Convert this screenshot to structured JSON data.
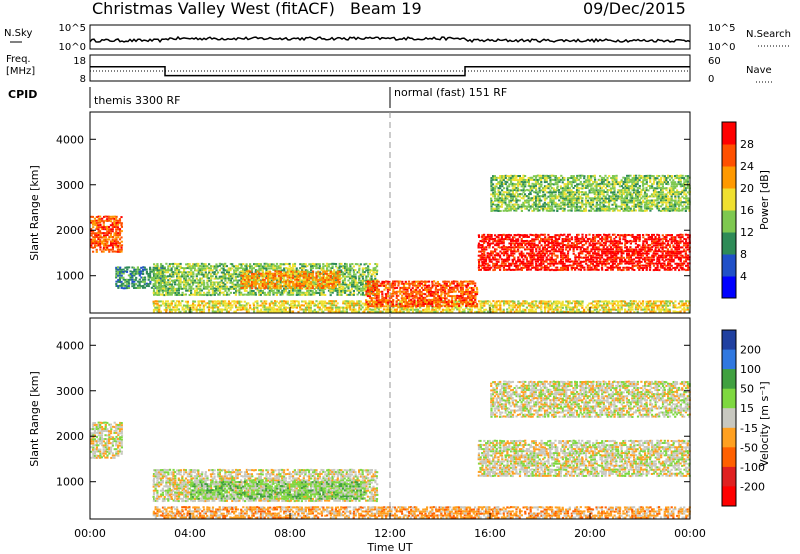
{
  "chart_data": [
    {
      "type": "line",
      "panel": "status",
      "title": "Christmas Valley West (fitACF)",
      "beam_label": "Beam 19",
      "date_label": "09/Dec/2015",
      "rows": {
        "nsky": {
          "left_label": "N.Sky",
          "left_ticks": [
            "10^5",
            "10^0"
          ],
          "right_label": "N.Search",
          "right_ticks": [
            "10^5",
            "10^0"
          ]
        },
        "freq": {
          "left_label_1": "Freq.",
          "left_label_2": "[MHz]",
          "left_ticks": [
            "18",
            "8"
          ],
          "right_label": "Nave",
          "right_ticks": [
            "60",
            "0"
          ],
          "freq_steps": [
            [
              0,
              14
            ],
            [
              3,
              14
            ],
            [
              3,
              10
            ],
            [
              15,
              10
            ],
            [
              15,
              14
            ],
            [
              24,
              14
            ]
          ]
        },
        "cpid": {
          "label": "CPID",
          "modes": [
            "themis 3300 RF",
            "normal (fast) 151 RF"
          ],
          "mode_change_hour": 12
        }
      }
    },
    {
      "type": "heatmap",
      "panel": "power",
      "ylabel": "Slant Range [km]",
      "yticks": [
        1000,
        2000,
        3000,
        4000
      ],
      "ylim": [
        180,
        4600
      ],
      "colorbar": {
        "label": "Power [dB]",
        "ticks": [
          "4",
          "8",
          "12",
          "16",
          "20",
          "24",
          "28"
        ],
        "colors": [
          "#0000ff",
          "#2050c8",
          "#2e8b57",
          "#7ec850",
          "#f0e030",
          "#ff9900",
          "#ff5000",
          "#ff0000"
        ]
      },
      "regions": [
        {
          "t": [
            0.0,
            1.3
          ],
          "r": [
            1500,
            2300
          ],
          "level": 6
        },
        {
          "t": [
            1.0,
            3.0
          ],
          "r": [
            700,
            1200
          ],
          "level": 2
        },
        {
          "t": [
            2.5,
            11.5
          ],
          "r": [
            550,
            1250
          ],
          "level": 3
        },
        {
          "t": [
            6.0,
            10.0
          ],
          "r": [
            700,
            1100
          ],
          "level": 5
        },
        {
          "t": [
            2.5,
            24.0
          ],
          "r": [
            180,
            450
          ],
          "level": 4
        },
        {
          "t": [
            11.0,
            15.5
          ],
          "r": [
            300,
            900
          ],
          "level": 6
        },
        {
          "t": [
            15.5,
            24.0
          ],
          "r": [
            1100,
            1900
          ],
          "level": 7
        },
        {
          "t": [
            16.0,
            24.0
          ],
          "r": [
            2400,
            3200
          ],
          "level": 3
        }
      ]
    },
    {
      "type": "heatmap",
      "panel": "velocity",
      "ylabel": "Slant Range [km]",
      "xlabel": "Time UT",
      "xticks": [
        "00:00",
        "04:00",
        "08:00",
        "12:00",
        "16:00",
        "20:00",
        "00:00"
      ],
      "yticks": [
        1000,
        2000,
        3000,
        4000
      ],
      "ylim": [
        180,
        4600
      ],
      "colorbar": {
        "label": "Velocity [m s⁻¹]",
        "ticks": [
          "200",
          "100",
          "50",
          "15",
          "-15",
          "-50",
          "-100",
          "-200"
        ],
        "colors": [
          "#2040a0",
          "#3078e0",
          "#40a040",
          "#7ed840",
          "#c8c8c0",
          "#ffa020",
          "#ff6000",
          "#e02020",
          "#ff0000"
        ]
      },
      "regions": [
        {
          "t": [
            0.0,
            1.3
          ],
          "r": [
            1500,
            2300
          ],
          "level": 4
        },
        {
          "t": [
            2.5,
            11.5
          ],
          "r": [
            550,
            1250
          ],
          "level": 4
        },
        {
          "t": [
            4.0,
            11.0
          ],
          "r": [
            600,
            1000
          ],
          "level": 3
        },
        {
          "t": [
            2.5,
            24.0
          ],
          "r": [
            180,
            450
          ],
          "level": 5
        },
        {
          "t": [
            15.5,
            24.0
          ],
          "r": [
            1100,
            1900
          ],
          "level": 4
        },
        {
          "t": [
            16.0,
            24.0
          ],
          "r": [
            2400,
            3200
          ],
          "level": 4
        }
      ]
    }
  ]
}
